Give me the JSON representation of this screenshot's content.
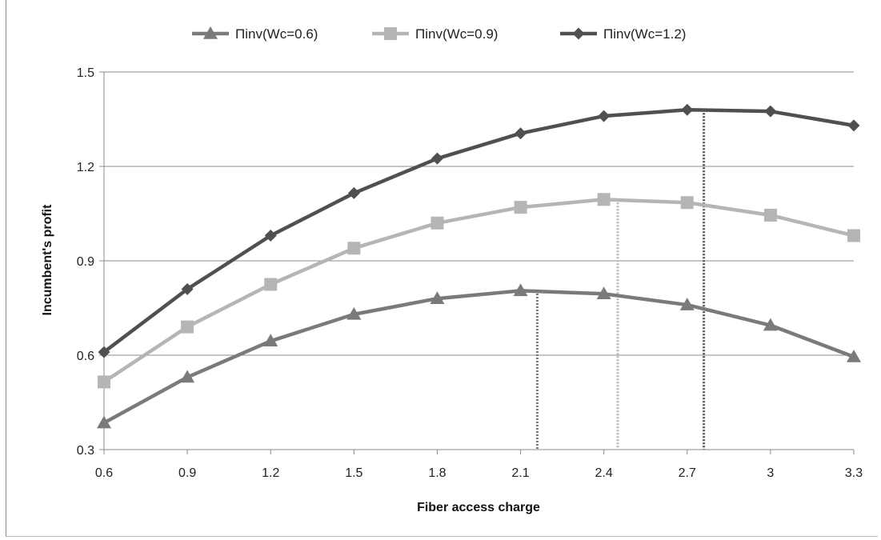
{
  "chart_data": {
    "type": "line",
    "title": "",
    "xlabel": "Fiber access charge",
    "ylabel": "Incumbent's profit",
    "x": [
      0.6,
      0.9,
      1.2,
      1.5,
      1.8,
      2.1,
      2.4,
      2.7,
      3.0,
      3.3
    ],
    "x_tick_labels": [
      "0.6",
      "0.9",
      "1.2",
      "1.5",
      "1.8",
      "2.1",
      "2.4",
      "2.7",
      "3",
      "3.3"
    ],
    "y_tick_labels": [
      "0.3",
      "0.6",
      "0.9",
      "1.2",
      "1.5"
    ],
    "y_ticks": [
      0.3,
      0.6,
      0.9,
      1.2,
      1.5
    ],
    "ylim": [
      0.3,
      1.5
    ],
    "grid": "horizontal",
    "legend_position": "top",
    "series": [
      {
        "name": "Πinv(Wc=0.6)",
        "marker": "triangle",
        "color": "#7a7a7a",
        "values": [
          0.385,
          0.53,
          0.645,
          0.73,
          0.78,
          0.805,
          0.795,
          0.76,
          0.695,
          0.595
        ],
        "optimum_x": 2.16,
        "optimum_y": 0.806
      },
      {
        "name": "Πinv(Wc=0.9)",
        "marker": "square",
        "color": "#b5b5b5",
        "values": [
          0.515,
          0.69,
          0.825,
          0.94,
          1.02,
          1.07,
          1.095,
          1.085,
          1.045,
          0.98
        ],
        "optimum_x": 2.45,
        "optimum_y": 1.095
      },
      {
        "name": "Πinv(Wc=1.2)",
        "marker": "diamond",
        "color": "#505050",
        "values": [
          0.61,
          0.81,
          0.98,
          1.115,
          1.225,
          1.305,
          1.36,
          1.38,
          1.375,
          1.33
        ],
        "optimum_x": 2.76,
        "optimum_y": 1.38
      }
    ]
  }
}
